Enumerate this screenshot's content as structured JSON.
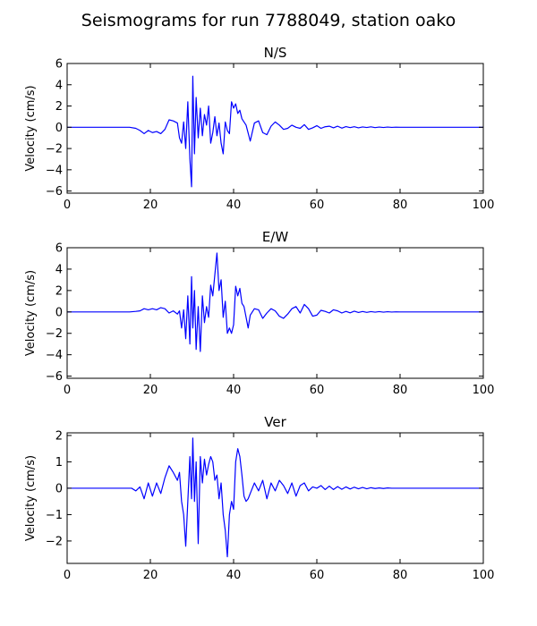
{
  "chart_data": {
    "type": "line",
    "suptitle": "Seismograms for run 7788049, station oako",
    "line_color": "#0000ff",
    "panels": [
      {
        "title": "N/S",
        "ylabel": "Velocity (cm/s)",
        "xlabel": "",
        "xlim": [
          0,
          100
        ],
        "ylim": [
          -6.2,
          6.0
        ],
        "xticks": [
          0,
          20,
          40,
          60,
          80,
          100
        ],
        "yticks": [
          -6,
          -4,
          -2,
          0,
          2,
          4,
          6
        ],
        "series": [
          {
            "x": [
              0,
              15,
              16.5,
              17.5,
              18.5,
              19.5,
              20.5,
              21.5,
              22.5,
              23.5,
              24.5,
              25.5,
              26.5,
              27.0,
              27.5,
              28.0,
              28.5,
              29.0,
              29.5,
              29.9,
              30.2,
              30.6,
              31.0,
              31.5,
              32.0,
              32.5,
              33.0,
              33.5,
              34.0,
              34.5,
              35.0,
              35.5,
              36.0,
              36.5,
              37.0,
              37.5,
              38.0,
              38.5,
              39.0,
              39.5,
              40.0,
              40.5,
              41.0,
              41.5,
              42.0,
              43.0,
              44.0,
              45.0,
              46.0,
              47.0,
              48.0,
              49.0,
              50.0,
              51.0,
              52.0,
              53.0,
              54.0,
              55.0,
              56.0,
              57.0,
              58.0,
              59.0,
              60.0,
              61.0,
              62.0,
              63.0,
              64.0,
              65.0,
              66.0,
              67.0,
              68.0,
              69.0,
              70.0,
              71.0,
              72.0,
              73.0,
              74.0,
              75.0,
              76.0,
              77.0,
              78.0,
              79.0,
              80.0,
              82.0,
              85.0,
              100.0
            ],
            "y": [
              0,
              0,
              -0.1,
              -0.3,
              -0.6,
              -0.3,
              -0.5,
              -0.4,
              -0.6,
              -0.2,
              0.7,
              0.6,
              0.4,
              -1.0,
              -1.5,
              0.5,
              -2.0,
              2.4,
              -3.0,
              -5.6,
              4.8,
              -2.5,
              2.8,
              -1.0,
              1.8,
              -0.8,
              1.2,
              0.2,
              2.0,
              -1.5,
              -0.5,
              1.0,
              -0.8,
              0.4,
              -1.5,
              -2.5,
              0.5,
              -0.3,
              -0.6,
              2.4,
              1.8,
              2.2,
              1.3,
              1.6,
              0.8,
              0.2,
              -1.3,
              0.4,
              0.6,
              -0.5,
              -0.7,
              0.1,
              0.5,
              0.2,
              -0.2,
              -0.1,
              0.2,
              0.0,
              -0.1,
              0.25,
              -0.2,
              -0.05,
              0.15,
              -0.1,
              0.05,
              0.1,
              -0.05,
              0.1,
              -0.08,
              0.06,
              -0.03,
              0.05,
              -0.05,
              0.03,
              -0.02,
              0.04,
              -0.03,
              0.02,
              -0.02,
              0.02,
              -0.01,
              0.01,
              0,
              0,
              0,
              0
            ]
          }
        ]
      },
      {
        "title": "E/W",
        "ylabel": "Velocity (cm/s)",
        "xlabel": "",
        "xlim": [
          0,
          100
        ],
        "ylim": [
          -6.2,
          6.0
        ],
        "xticks": [
          0,
          20,
          40,
          60,
          80,
          100
        ],
        "yticks": [
          -6,
          -4,
          -2,
          0,
          2,
          4,
          6
        ],
        "series": [
          {
            "x": [
              0,
              15,
              16.5,
              17.5,
              18.5,
              19.5,
              20.5,
              21.5,
              22.5,
              23.5,
              24.5,
              25.5,
              26.5,
              27.0,
              27.5,
              28.0,
              28.5,
              29.0,
              29.5,
              29.9,
              30.2,
              30.6,
              31.0,
              31.5,
              32.0,
              32.5,
              33.0,
              33.5,
              34.0,
              34.5,
              35.0,
              35.5,
              36.0,
              36.5,
              37.0,
              37.5,
              38.0,
              38.5,
              39.0,
              39.5,
              40.0,
              40.5,
              41.0,
              41.5,
              42.0,
              42.5,
              43.0,
              43.5,
              44.0,
              45.0,
              46.0,
              47.0,
              48.0,
              49.0,
              50.0,
              51.0,
              52.0,
              53.0,
              54.0,
              55.0,
              56.0,
              57.0,
              58.0,
              59.0,
              60.0,
              61.0,
              62.0,
              63.0,
              64.0,
              65.0,
              66.0,
              67.0,
              68.0,
              69.0,
              70.0,
              71.0,
              72.0,
              73.0,
              74.0,
              75.0,
              76.0,
              77.0,
              78.0,
              79.0,
              80.0,
              82.0,
              85.0,
              100.0
            ],
            "y": [
              0,
              0,
              0.05,
              0.1,
              0.3,
              0.2,
              0.3,
              0.2,
              0.4,
              0.3,
              -0.1,
              0.1,
              -0.2,
              0.1,
              -1.5,
              0.2,
              -2.5,
              1.5,
              -3.0,
              3.3,
              -1.5,
              2.0,
              -3.5,
              0.5,
              -3.7,
              1.5,
              -1.0,
              0.5,
              -0.5,
              2.5,
              1.5,
              3.5,
              5.5,
              2.0,
              3.0,
              -0.5,
              1.0,
              -2.0,
              -1.5,
              -2.0,
              -1.2,
              2.4,
              1.5,
              2.2,
              0.8,
              0.5,
              -0.5,
              -1.5,
              -0.3,
              0.3,
              0.2,
              -0.6,
              -0.1,
              0.3,
              0.1,
              -0.4,
              -0.6,
              -0.2,
              0.3,
              0.5,
              -0.1,
              0.7,
              0.3,
              -0.4,
              -0.3,
              0.15,
              0.05,
              -0.1,
              0.2,
              0.1,
              -0.1,
              0.05,
              -0.08,
              0.07,
              -0.05,
              0.04,
              -0.04,
              0.03,
              -0.02,
              0.03,
              -0.02,
              0.02,
              -0.01,
              0.01,
              0,
              0,
              0,
              0
            ]
          }
        ]
      },
      {
        "title": "Ver",
        "ylabel": "Velocity (cm/s)",
        "xlabel": "",
        "xlim": [
          0,
          100
        ],
        "ylim": [
          -2.85,
          2.1
        ],
        "xticks": [
          0,
          20,
          40,
          60,
          80,
          100
        ],
        "yticks": [
          -2,
          -1,
          0,
          1,
          2
        ],
        "series": [
          {
            "x": [
              0,
              15.5,
              16.5,
              17.5,
              18.5,
              19.5,
              20.5,
              21.5,
              22.5,
              23.5,
              24.5,
              25.5,
              26.5,
              27.0,
              27.5,
              28.0,
              28.5,
              29.0,
              29.5,
              29.9,
              30.2,
              30.6,
              31.0,
              31.5,
              32.0,
              32.5,
              33.0,
              33.5,
              34.0,
              34.5,
              35.0,
              35.5,
              36.0,
              36.5,
              37.0,
              37.5,
              38.0,
              38.5,
              39.0,
              39.5,
              40.0,
              40.5,
              41.0,
              41.5,
              42.0,
              42.5,
              43.0,
              43.5,
              44.0,
              45.0,
              46.0,
              47.0,
              48.0,
              49.0,
              50.0,
              51.0,
              52.0,
              53.0,
              54.0,
              55.0,
              56.0,
              57.0,
              58.0,
              59.0,
              60.0,
              61.0,
              62.0,
              63.0,
              64.0,
              65.0,
              66.0,
              67.0,
              68.0,
              69.0,
              70.0,
              71.0,
              72.0,
              73.0,
              74.0,
              75.0,
              76.0,
              77.0,
              78.0,
              79.0,
              80.0,
              82.0,
              85.0,
              100.0
            ],
            "y": [
              0,
              0,
              -0.1,
              0.05,
              -0.4,
              0.2,
              -0.3,
              0.2,
              -0.2,
              0.4,
              0.85,
              0.6,
              0.3,
              0.6,
              -0.5,
              -1.0,
              -2.2,
              -0.5,
              1.2,
              -0.4,
              1.9,
              -0.5,
              1.0,
              -2.1,
              1.2,
              0.2,
              1.1,
              0.5,
              0.9,
              1.2,
              1.0,
              0.3,
              0.5,
              -0.4,
              0.2,
              -1.0,
              -1.6,
              -2.6,
              -1.0,
              -0.5,
              -0.8,
              1.0,
              1.5,
              1.2,
              0.5,
              -0.3,
              -0.5,
              -0.4,
              -0.2,
              0.2,
              -0.1,
              0.3,
              -0.4,
              0.2,
              -0.1,
              0.3,
              0.1,
              -0.2,
              0.2,
              -0.3,
              0.1,
              0.2,
              -0.1,
              0.05,
              0.0,
              0.1,
              -0.05,
              0.08,
              -0.05,
              0.06,
              -0.04,
              0.05,
              -0.03,
              0.04,
              -0.02,
              0.03,
              -0.02,
              0.02,
              -0.01,
              0.01,
              -0.01,
              0.01,
              0,
              0,
              0,
              0,
              0,
              0
            ]
          }
        ]
      }
    ]
  }
}
